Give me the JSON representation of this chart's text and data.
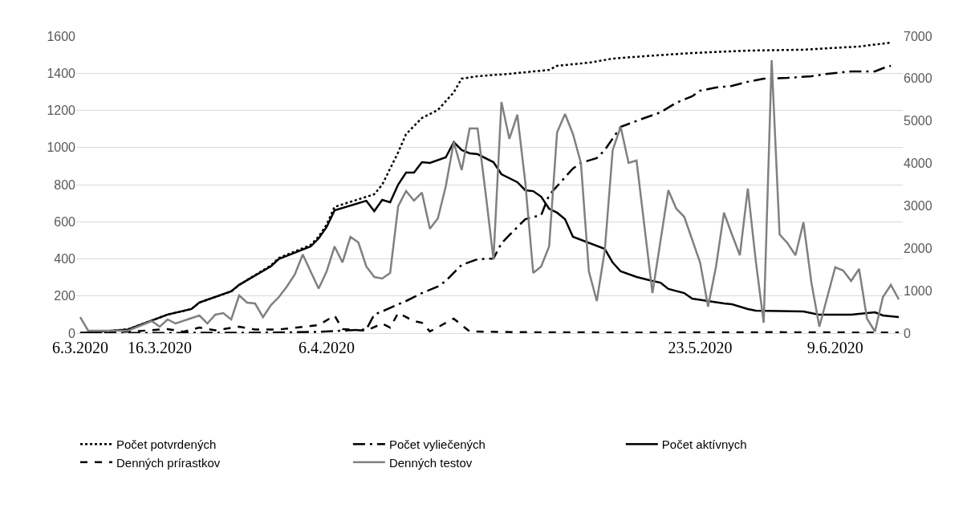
{
  "chart_data": {
    "type": "line",
    "xlim": [
      "2020-03-05T12:00",
      "2020-06-17T12:00"
    ],
    "xticks": [
      {
        "value": "2020-03-06",
        "label": "6.3.2020"
      },
      {
        "value": "2020-03-16",
        "label": "16.3.2020"
      },
      {
        "value": "2020-04-06",
        "label": "6.4.2020"
      },
      {
        "value": "2020-05-23",
        "label": "23.5.2020"
      },
      {
        "value": "2020-06-09",
        "label": "9.6.2020"
      }
    ],
    "ylim": [
      0,
      1600
    ],
    "yticks": [
      0,
      200,
      400,
      600,
      800,
      1000,
      1200,
      1400,
      1600
    ],
    "y2lim": [
      0,
      7000
    ],
    "y2ticks": [
      0,
      1000,
      2000,
      3000,
      4000,
      5000,
      6000,
      7000
    ],
    "grid": "y",
    "legend": "bottom",
    "series": [
      {
        "name": "Počet potvrdených",
        "color": "#000000",
        "line_style": "dotted",
        "x": [
          "2020-03-06",
          "2020-03-12",
          "2020-03-17",
          "2020-03-20",
          "2020-03-21",
          "2020-03-25",
          "2020-03-26",
          "2020-03-30",
          "2020-03-31",
          "2020-04-04",
          "2020-04-05",
          "2020-04-06",
          "2020-04-07",
          "2020-04-12",
          "2020-04-13",
          "2020-04-15",
          "2020-04-16",
          "2020-04-18",
          "2020-04-20",
          "2020-04-22",
          "2020-04-23",
          "2020-04-25",
          "2020-04-29",
          "2020-05-04",
          "2020-05-05",
          "2020-05-09",
          "2020-05-12",
          "2020-05-16",
          "2020-05-22",
          "2020-05-29",
          "2020-06-05",
          "2020-06-12",
          "2020-06-16"
        ],
        "values": [
          0,
          20,
          100,
          130,
          165,
          225,
          260,
          365,
          405,
          475,
          520,
          585,
          680,
          748,
          800,
          973,
          1072,
          1159,
          1202,
          1297,
          1371,
          1384,
          1397,
          1418,
          1440,
          1457,
          1479,
          1492,
          1509,
          1522,
          1527,
          1544,
          1565
        ]
      },
      {
        "name": "Počet vyliečených",
        "color": "#000000",
        "line_style": "dashdot",
        "x": [
          "2020-03-06",
          "2020-03-30",
          "2020-04-05",
          "2020-04-11",
          "2020-04-12",
          "2020-04-13",
          "2020-04-15",
          "2020-04-16",
          "2020-04-18",
          "2020-04-20",
          "2020-04-21",
          "2020-04-23",
          "2020-04-25",
          "2020-04-27",
          "2020-04-28",
          "2020-04-29",
          "2020-05-01",
          "2020-05-03",
          "2020-05-04",
          "2020-05-07",
          "2020-05-08",
          "2020-05-10",
          "2020-05-11",
          "2020-05-13",
          "2020-05-16",
          "2020-05-18",
          "2020-05-20",
          "2020-05-22",
          "2020-05-23",
          "2020-05-25",
          "2020-05-27",
          "2020-05-29",
          "2020-05-31",
          "2020-06-03",
          "2020-06-06",
          "2020-06-08",
          "2020-06-11",
          "2020-06-14",
          "2020-06-15",
          "2020-06-16"
        ],
        "values": [
          0,
          3,
          7,
          20,
          100,
          117,
          155,
          173,
          216,
          251,
          281,
          368,
          398,
          402,
          484,
          528,
          614,
          636,
          744,
          887,
          917,
          943,
          986,
          1111,
          1159,
          1189,
          1241,
          1276,
          1306,
          1323,
          1332,
          1354,
          1371,
          1375,
          1384,
          1397,
          1410,
          1410,
          1427,
          1440
        ]
      },
      {
        "name": "Počet aktívnych",
        "color": "#000000",
        "line_style": "solid",
        "x": [
          "2020-03-06",
          "2020-03-12",
          "2020-03-17",
          "2020-03-20",
          "2020-03-21",
          "2020-03-25",
          "2020-03-26",
          "2020-03-30",
          "2020-03-31",
          "2020-04-04",
          "2020-04-05",
          "2020-04-06",
          "2020-04-07",
          "2020-04-11",
          "2020-04-12",
          "2020-04-13",
          "2020-04-14",
          "2020-04-15",
          "2020-04-16",
          "2020-04-17",
          "2020-04-18",
          "2020-04-19",
          "2020-04-21",
          "2020-04-22",
          "2020-04-23",
          "2020-04-24",
          "2020-04-25",
          "2020-04-27",
          "2020-04-28",
          "2020-04-30",
          "2020-05-01",
          "2020-05-02",
          "2020-05-03",
          "2020-05-04",
          "2020-05-05",
          "2020-05-06",
          "2020-05-07",
          "2020-05-11",
          "2020-05-12",
          "2020-05-13",
          "2020-05-15",
          "2020-05-17",
          "2020-05-18",
          "2020-05-19",
          "2020-05-21",
          "2020-05-22",
          "2020-05-24",
          "2020-05-26",
          "2020-05-27",
          "2020-05-29",
          "2020-05-30",
          "2020-06-05",
          "2020-06-07",
          "2020-06-11",
          "2020-06-14",
          "2020-06-15",
          "2020-06-17"
        ],
        "values": [
          0,
          20,
          100,
          130,
          165,
          225,
          260,
          360,
          400,
          467,
          510,
          571,
          661,
          713,
          657,
          718,
          705,
          800,
          865,
          865,
          921,
          917,
          947,
          1029,
          986,
          969,
          964,
          921,
          856,
          813,
          770,
          765,
          735,
          670,
          649,
          614,
          519,
          454,
          380,
          333,
          303,
          281,
          272,
          238,
          216,
          186,
          173,
          160,
          156,
          130,
          121,
          117,
          99,
          99,
          112,
          95,
          86
        ]
      },
      {
        "name": "Denných prírastkov",
        "color": "#000000",
        "line_style": "dashed",
        "x": [
          "2020-03-06",
          "2020-03-10",
          "2020-03-13",
          "2020-03-17",
          "2020-03-19",
          "2020-03-21",
          "2020-03-23",
          "2020-03-26",
          "2020-03-28",
          "2020-03-31",
          "2020-04-05",
          "2020-04-07",
          "2020-04-08",
          "2020-04-11",
          "2020-04-13",
          "2020-04-14",
          "2020-04-15",
          "2020-04-17",
          "2020-04-18",
          "2020-04-19",
          "2020-04-22",
          "2020-04-24",
          "2020-05-01",
          "2020-05-15",
          "2020-06-01",
          "2020-06-17"
        ],
        "values": [
          0,
          5,
          10,
          22,
          8,
          30,
          15,
          35,
          20,
          20,
          43,
          95,
          22,
          13,
          52,
          30,
          108,
          65,
          56,
          9,
          78,
          9,
          5,
          3,
          5,
          3
        ]
      },
      {
        "name": "Denných testov",
        "color": "#808080",
        "line_style": "solid",
        "axis": "y2",
        "x": [
          "2020-03-06",
          "2020-03-07",
          "2020-03-12",
          "2020-03-15",
          "2020-03-16",
          "2020-03-17",
          "2020-03-18",
          "2020-03-21",
          "2020-03-22",
          "2020-03-23",
          "2020-03-24",
          "2020-03-25",
          "2020-03-26",
          "2020-03-27",
          "2020-03-28",
          "2020-03-29",
          "2020-03-30",
          "2020-03-31",
          "2020-04-01",
          "2020-04-02",
          "2020-04-03",
          "2020-04-05",
          "2020-04-06",
          "2020-04-07",
          "2020-04-08",
          "2020-04-09",
          "2020-04-10",
          "2020-04-11",
          "2020-04-12",
          "2020-04-13",
          "2020-04-14",
          "2020-04-15",
          "2020-04-16",
          "2020-04-17",
          "2020-04-18",
          "2020-04-19",
          "2020-04-20",
          "2020-04-21",
          "2020-04-22",
          "2020-04-23",
          "2020-04-24",
          "2020-04-25",
          "2020-04-26",
          "2020-04-27",
          "2020-04-28",
          "2020-04-29",
          "2020-04-30",
          "2020-05-01",
          "2020-05-02",
          "2020-05-03",
          "2020-05-04",
          "2020-05-05",
          "2020-05-06",
          "2020-05-07",
          "2020-05-08",
          "2020-05-09",
          "2020-05-10",
          "2020-05-11",
          "2020-05-12",
          "2020-05-13",
          "2020-05-14",
          "2020-05-15",
          "2020-05-17",
          "2020-05-19",
          "2020-05-20",
          "2020-05-21",
          "2020-05-23",
          "2020-05-24",
          "2020-05-25",
          "2020-05-26",
          "2020-05-27",
          "2020-05-28",
          "2020-05-29",
          "2020-05-30",
          "2020-05-31",
          "2020-06-01",
          "2020-06-02",
          "2020-06-03",
          "2020-06-04",
          "2020-06-05",
          "2020-06-06",
          "2020-06-07",
          "2020-06-08",
          "2020-06-09",
          "2020-06-10",
          "2020-06-11",
          "2020-06-12",
          "2020-06-13",
          "2020-06-14",
          "2020-06-15",
          "2020-06-16",
          "2020-06-17"
        ],
        "values": [
          378,
          57,
          57,
          284,
          151,
          322,
          227,
          416,
          227,
          435,
          473,
          322,
          889,
          719,
          700,
          378,
          662,
          851,
          1097,
          1381,
          1854,
          1050,
          1450,
          2043,
          1665,
          2270,
          2138,
          1570,
          1324,
          1287,
          1419,
          2989,
          3349,
          3122,
          3311,
          2460,
          2706,
          3462,
          4503,
          3841,
          4825,
          4825,
          3311,
          1741,
          5449,
          4579,
          5146,
          3557,
          1419,
          1570,
          2043,
          4730,
          5165,
          4692,
          4011,
          1457,
          757,
          1949,
          4314,
          4862,
          4011,
          4068,
          946,
          3368,
          2933,
          2743,
          1665,
          624,
          1570,
          2838,
          2327,
          1835,
          3406,
          1703,
          246,
          6433,
          2327,
          2119,
          1835,
          2611,
          1192,
          151,
          851,
          1551,
          1476,
          1230,
          1514,
          341,
          38,
          851,
          1135,
          795
        ]
      }
    ]
  }
}
